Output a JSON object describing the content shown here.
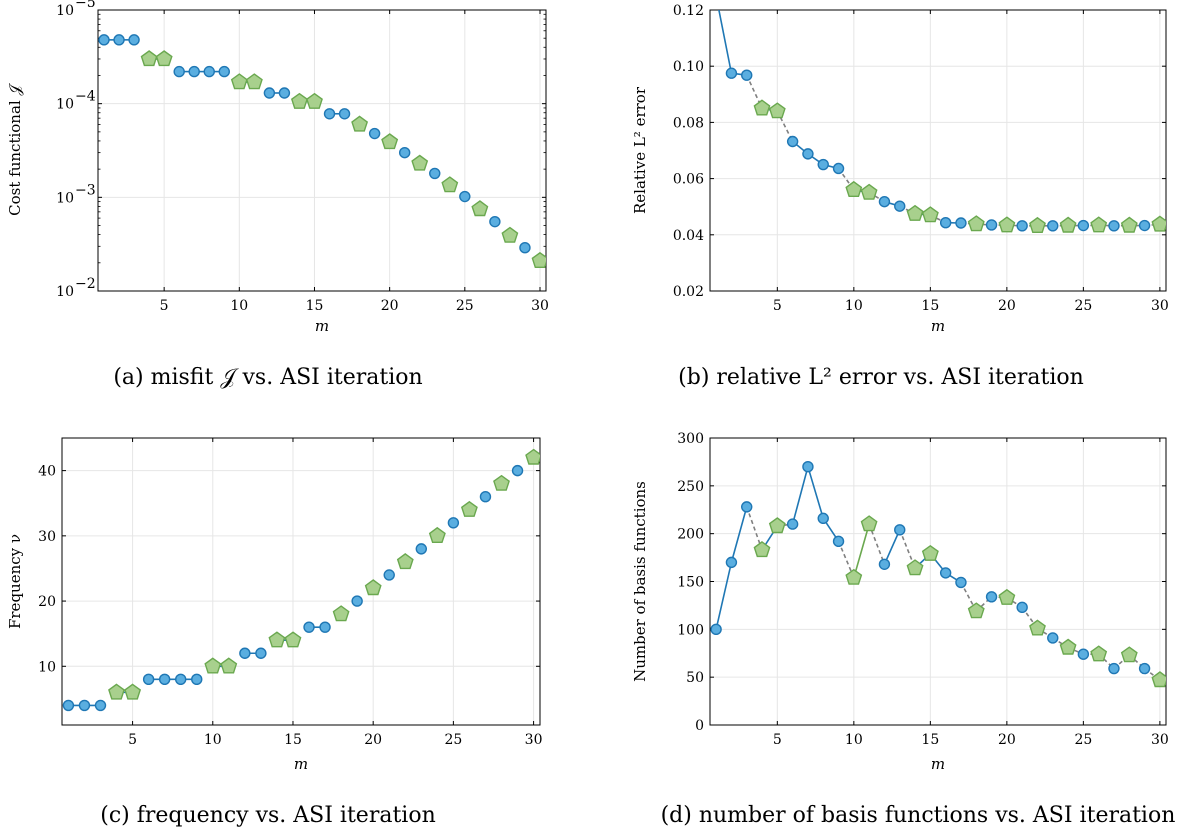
{
  "colors": {
    "blue_line": "#1f77b4",
    "blue_fill": "#5aaee0",
    "green_line": "#6aa84f",
    "green_fill": "#a8d08d",
    "grid": "#e6e6e6"
  },
  "panels": [
    {
      "caption": "(a) misfit 𝒥 vs. ASI iteration",
      "ylabel": "Cost functional 𝒥",
      "xlabel": "m",
      "yticks": [
        "10",
        "10",
        "10",
        "10"
      ],
      "ytick_exps": [
        "−2",
        "−3",
        "−4",
        "−5"
      ]
    },
    {
      "caption": "(b) relative L² error vs. ASI iteration",
      "ylabel": "Relative L² error",
      "xlabel": "m"
    },
    {
      "caption": "(c) frequency vs. ASI iteration",
      "ylabel": "Frequency ν",
      "xlabel": "m"
    },
    {
      "caption": "(d) number of basis functions vs. ASI iteration",
      "ylabel": "Number of basis functions",
      "xlabel": "m"
    }
  ],
  "chart_data": [
    {
      "type": "scatter",
      "title": "",
      "xlabel": "m",
      "ylabel": "Cost functional 𝒥",
      "yscale": "log",
      "xlim": [
        0.6,
        30.4
      ],
      "ylim": [
        1e-05,
        0.01
      ],
      "xticks": [
        5,
        10,
        15,
        20,
        25,
        30
      ],
      "yticks": [
        1e-05,
        0.0001,
        0.001,
        0.01
      ],
      "grid": true,
      "x": [
        1,
        2,
        3,
        4,
        5,
        6,
        7,
        8,
        9,
        10,
        11,
        12,
        13,
        14,
        15,
        16,
        17,
        18,
        19,
        20,
        21,
        22,
        23,
        24,
        25,
        26,
        27,
        28,
        29,
        30
      ],
      "y": [
        0.0048,
        0.0048,
        0.0048,
        0.003,
        0.003,
        0.0022,
        0.0022,
        0.0022,
        0.0022,
        0.0017,
        0.0017,
        0.0013,
        0.0013,
        0.00105,
        0.00105,
        0.00078,
        0.00078,
        0.0006,
        0.00048,
        0.00039,
        0.0003,
        0.00023,
        0.00018,
        0.000135,
        0.000102,
        7.5e-05,
        5.5e-05,
        3.9e-05,
        2.9e-05,
        2.1e-05
      ],
      "markers": [
        "c",
        "c",
        "c",
        "p",
        "p",
        "c",
        "c",
        "c",
        "c",
        "p",
        "p",
        "c",
        "c",
        "p",
        "p",
        "c",
        "c",
        "p",
        "c",
        "p",
        "c",
        "p",
        "c",
        "p",
        "c",
        "p",
        "c",
        "p",
        "c",
        "p"
      ],
      "link": [
        "s",
        "s",
        "",
        "s",
        "",
        "s",
        "s",
        "s",
        "",
        "s",
        "",
        "s",
        "",
        "s",
        "",
        "s",
        "",
        "",
        "",
        "",
        "",
        "",
        "",
        "",
        "",
        "",
        "",
        "",
        "",
        ""
      ]
    },
    {
      "type": "line",
      "title": "",
      "xlabel": "m",
      "ylabel": "Relative L² error",
      "xlim": [
        0.6,
        30.4
      ],
      "ylim": [
        0.02,
        0.12
      ],
      "xticks": [
        5,
        10,
        15,
        20,
        25,
        30
      ],
      "yticks": [
        0.02,
        0.04,
        0.06,
        0.08,
        0.1,
        0.12
      ],
      "yticklabels": [
        "0.02",
        "0.04",
        "0.06",
        "0.08",
        "0.10",
        "0.12"
      ],
      "grid": true,
      "x": [
        1,
        2,
        3,
        4,
        5,
        6,
        7,
        8,
        9,
        10,
        11,
        12,
        13,
        14,
        15,
        16,
        17,
        18,
        19,
        20,
        21,
        22,
        23,
        24,
        25,
        26,
        27,
        28,
        29,
        30
      ],
      "y": [
        0.125,
        0.0975,
        0.0968,
        0.085,
        0.084,
        0.0732,
        0.0688,
        0.065,
        0.0636,
        0.056,
        0.055,
        0.0518,
        0.0502,
        0.0475,
        0.047,
        0.0443,
        0.0442,
        0.0438,
        0.0435,
        0.0434,
        0.0432,
        0.0432,
        0.0432,
        0.0433,
        0.0433,
        0.0434,
        0.0432,
        0.0433,
        0.0433,
        0.0437
      ],
      "markers": [
        "c",
        "c",
        "c",
        "p",
        "p",
        "c",
        "c",
        "c",
        "c",
        "p",
        "p",
        "c",
        "c",
        "p",
        "p",
        "c",
        "c",
        "p",
        "c",
        "p",
        "c",
        "p",
        "c",
        "p",
        "c",
        "p",
        "c",
        "p",
        "c",
        "p"
      ],
      "link": [
        "s",
        "s",
        "d",
        "s",
        "d",
        "s",
        "s",
        "s",
        "d",
        "s",
        "d",
        "s",
        "d",
        "s",
        "d",
        "s",
        "d",
        "d",
        "d",
        "d",
        "d",
        "d",
        "d",
        "d",
        "d",
        "d",
        "d",
        "d",
        "d",
        ""
      ]
    },
    {
      "type": "scatter",
      "title": "",
      "xlabel": "m",
      "ylabel": "Frequency ν",
      "xlim": [
        0.6,
        30.4
      ],
      "ylim": [
        1,
        45
      ],
      "xticks": [
        5,
        10,
        15,
        20,
        25,
        30
      ],
      "yticks": [
        10,
        20,
        30,
        40
      ],
      "grid": true,
      "x": [
        1,
        2,
        3,
        4,
        5,
        6,
        7,
        8,
        9,
        10,
        11,
        12,
        13,
        14,
        15,
        16,
        17,
        18,
        19,
        20,
        21,
        22,
        23,
        24,
        25,
        26,
        27,
        28,
        29,
        30
      ],
      "y": [
        4,
        4,
        4,
        6,
        6,
        8,
        8,
        8,
        8,
        10,
        10,
        12,
        12,
        14,
        14,
        16,
        16,
        18,
        20,
        22,
        24,
        26,
        28,
        30,
        32,
        34,
        36,
        38,
        40,
        42
      ],
      "markers": [
        "c",
        "c",
        "c",
        "p",
        "p",
        "c",
        "c",
        "c",
        "c",
        "p",
        "p",
        "c",
        "c",
        "p",
        "p",
        "c",
        "c",
        "p",
        "c",
        "p",
        "c",
        "p",
        "c",
        "p",
        "c",
        "p",
        "c",
        "p",
        "c",
        "p"
      ],
      "link": [
        "s",
        "s",
        "",
        "s",
        "",
        "s",
        "s",
        "s",
        "",
        "s",
        "",
        "s",
        "",
        "s",
        "",
        "s",
        "",
        "",
        "",
        "",
        "",
        "",
        "",
        "",
        "",
        "",
        "",
        "",
        "",
        ""
      ]
    },
    {
      "type": "line",
      "title": "",
      "xlabel": "m",
      "ylabel": "Number of basis functions",
      "xlim": [
        0.6,
        30.4
      ],
      "ylim": [
        0,
        300
      ],
      "xticks": [
        5,
        10,
        15,
        20,
        25,
        30
      ],
      "yticks": [
        0,
        50,
        100,
        150,
        200,
        250,
        300
      ],
      "grid": true,
      "x": [
        1,
        2,
        3,
        4,
        5,
        6,
        7,
        8,
        9,
        10,
        11,
        12,
        13,
        14,
        15,
        16,
        17,
        18,
        19,
        20,
        21,
        22,
        23,
        24,
        25,
        26,
        27,
        28,
        29,
        30
      ],
      "y": [
        100,
        170,
        228,
        183,
        208,
        210,
        270,
        216,
        192,
        154,
        210,
        168,
        204,
        164,
        179,
        159,
        149,
        119,
        134,
        133,
        123,
        101,
        91,
        81,
        74,
        74,
        59,
        73,
        59,
        47
      ],
      "markers": [
        "c",
        "c",
        "c",
        "p",
        "p",
        "c",
        "c",
        "c",
        "c",
        "p",
        "p",
        "c",
        "c",
        "p",
        "p",
        "c",
        "c",
        "p",
        "c",
        "p",
        "c",
        "p",
        "c",
        "p",
        "c",
        "p",
        "c",
        "p",
        "c",
        "p"
      ],
      "link": [
        "s",
        "s",
        "d",
        "s",
        "d",
        "s",
        "s",
        "s",
        "d",
        "g",
        "d",
        "s",
        "d",
        "s",
        "s",
        "s",
        "d",
        "d",
        "d",
        "d",
        "d",
        "d",
        "d",
        "d",
        "d",
        "d",
        "d",
        "d",
        "d",
        ""
      ]
    }
  ]
}
